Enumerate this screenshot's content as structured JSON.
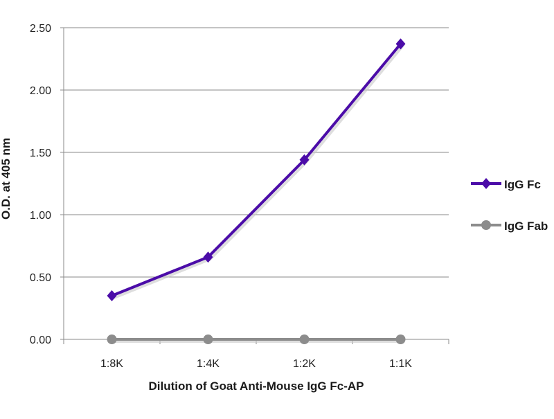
{
  "chart_data": {
    "type": "line",
    "title": "",
    "xlabel": "Dilution of Goat Anti-Mouse IgG Fc-AP",
    "ylabel": "O.D. at 405 nm",
    "categories": [
      "1:8K",
      "1:4K",
      "1:2K",
      "1:1K"
    ],
    "ylim": [
      0,
      2.5
    ],
    "yticks": [
      "0.00",
      "0.50",
      "1.00",
      "1.50",
      "2.00",
      "2.50"
    ],
    "ytick_values": [
      0,
      0.5,
      1.0,
      1.5,
      2.0,
      2.5
    ],
    "grid": true,
    "legend_position": "right",
    "series": [
      {
        "name": "IgG Fc",
        "values": [
          0.35,
          0.66,
          1.44,
          2.37
        ],
        "color": "#4b0ca8",
        "marker": "diamond"
      },
      {
        "name": "IgG Fab",
        "values": [
          0,
          0,
          0,
          0
        ],
        "color": "#8c8c8c",
        "marker": "circle"
      }
    ]
  }
}
